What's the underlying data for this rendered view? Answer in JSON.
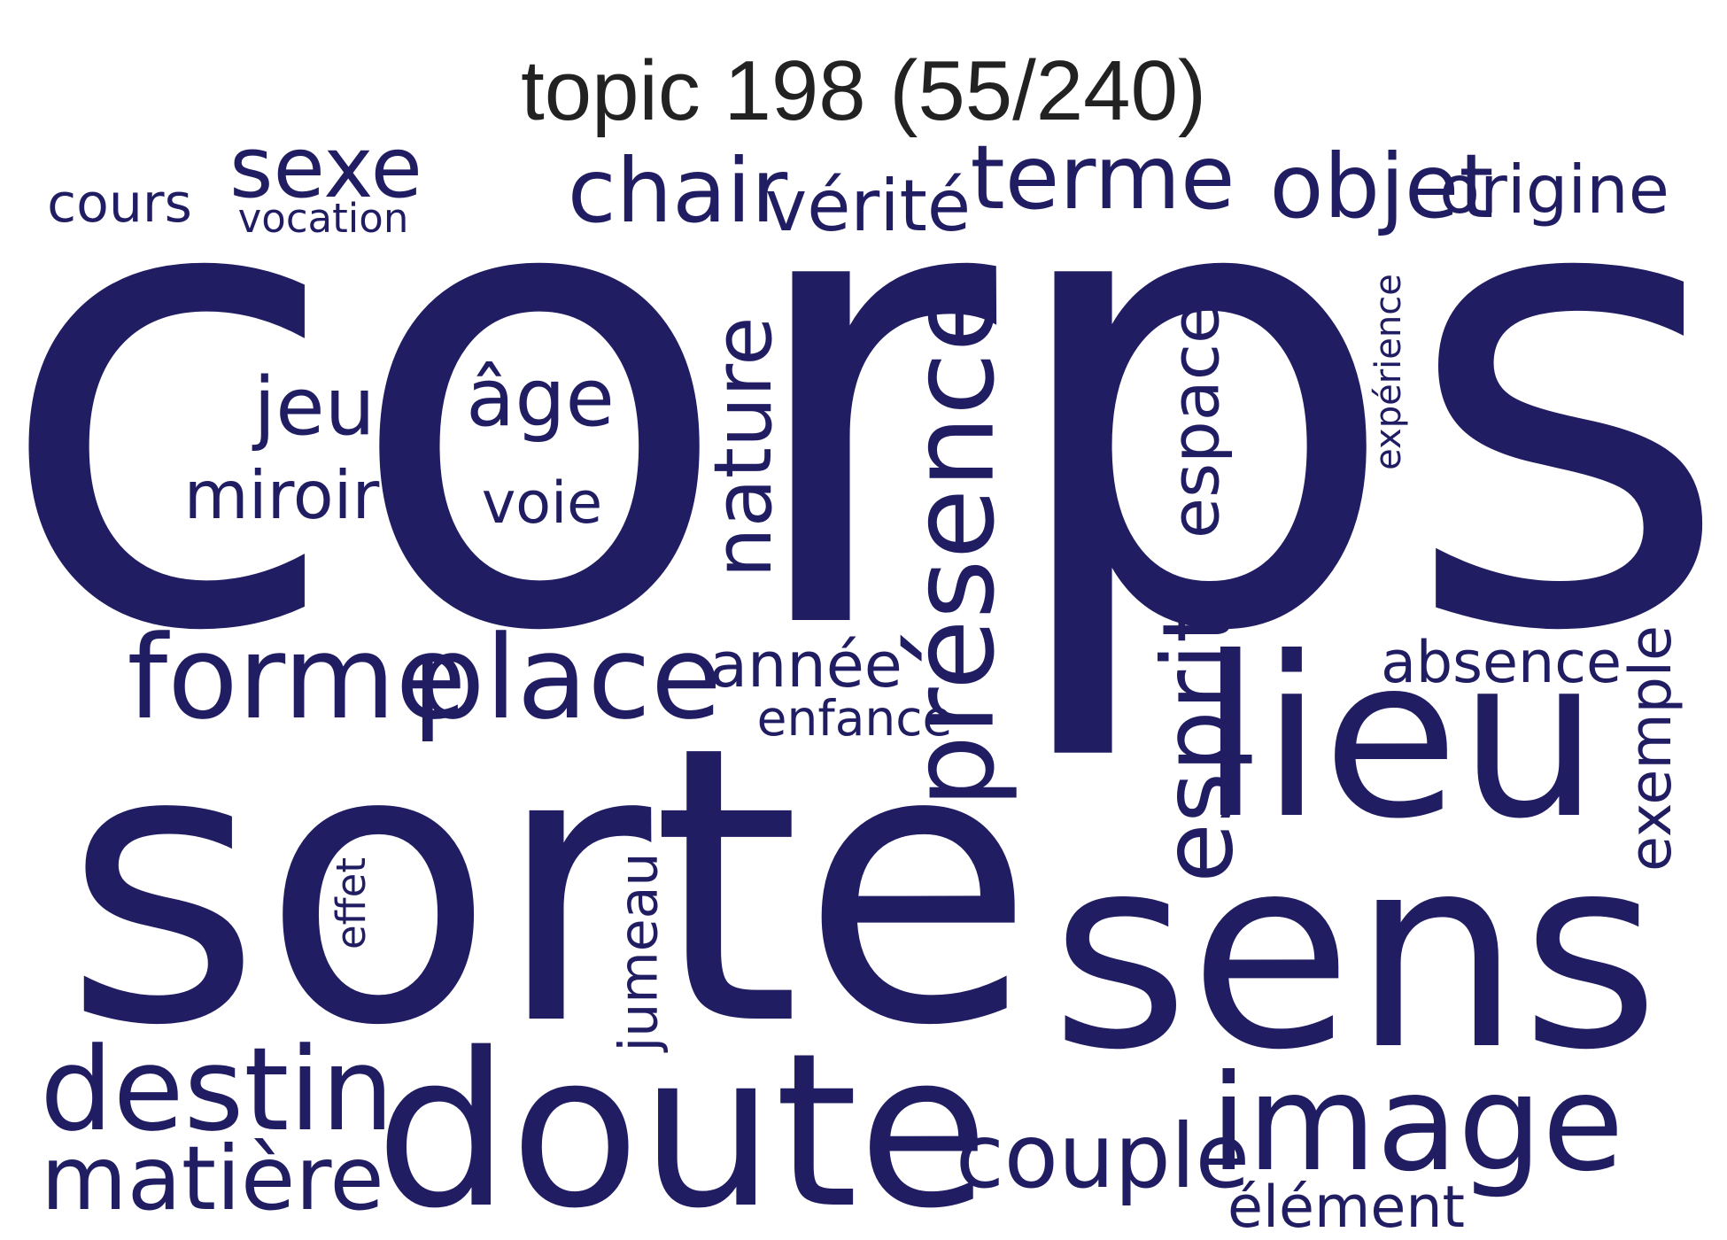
{
  "title": "topic 198 (55/240)",
  "word_color": "#211d63",
  "words": [
    {
      "text": "corps",
      "rotate": false
    },
    {
      "text": "sorte",
      "rotate": false
    },
    {
      "text": "sens",
      "rotate": false
    },
    {
      "text": "doute",
      "rotate": false
    },
    {
      "text": "lieu",
      "rotate": false
    },
    {
      "text": "image",
      "rotate": false
    },
    {
      "text": "présence",
      "rotate": true
    },
    {
      "text": "forme",
      "rotate": false
    },
    {
      "text": "place",
      "rotate": false
    },
    {
      "text": "destin",
      "rotate": false
    },
    {
      "text": "couple",
      "rotate": false
    },
    {
      "text": "matière",
      "rotate": false
    },
    {
      "text": "esprit",
      "rotate": true
    },
    {
      "text": "terme",
      "rotate": false
    },
    {
      "text": "objet",
      "rotate": false
    },
    {
      "text": "chair",
      "rotate": false
    },
    {
      "text": "sexe",
      "rotate": false
    },
    {
      "text": "jeu",
      "rotate": false
    },
    {
      "text": "nature",
      "rotate": true
    },
    {
      "text": "âge",
      "rotate": false
    },
    {
      "text": "exemple",
      "rotate": true
    },
    {
      "text": "miroir",
      "rotate": false
    },
    {
      "text": "vérité",
      "rotate": false
    },
    {
      "text": "origine",
      "rotate": false
    },
    {
      "text": "espace",
      "rotate": true
    },
    {
      "text": "année",
      "rotate": false
    },
    {
      "text": "absence",
      "rotate": false
    },
    {
      "text": "élément",
      "rotate": false
    },
    {
      "text": "jumeau",
      "rotate": true
    },
    {
      "text": "cours",
      "rotate": false
    },
    {
      "text": "voie",
      "rotate": false
    },
    {
      "text": "enfance",
      "rotate": false
    },
    {
      "text": "effet",
      "rotate": true
    },
    {
      "text": "expérience",
      "rotate": true
    },
    {
      "text": "vocation",
      "rotate": false
    }
  ]
}
